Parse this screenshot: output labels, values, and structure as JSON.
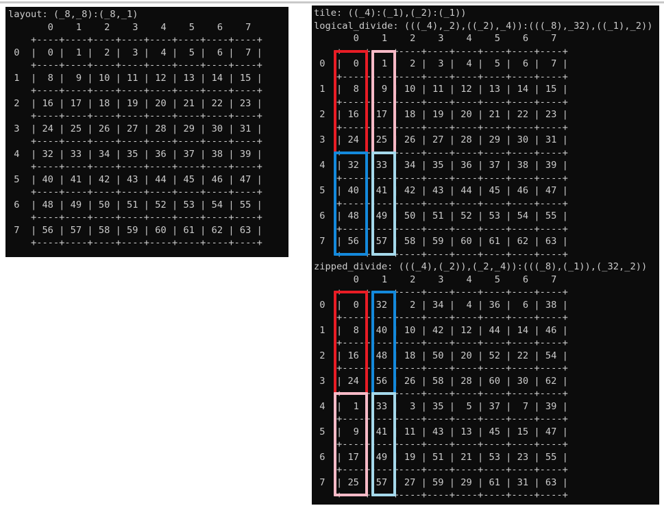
{
  "page": {
    "background": "#ffffff",
    "top_divider_color": "#c9c9c9"
  },
  "terminal": {
    "background": "#0c0c0c",
    "text_color": "#cccccc"
  },
  "highlight_colors": {
    "red": "#e81c25",
    "pink": "#f9bac7",
    "blue": "#1489db",
    "skyblue": "#a5d9eb"
  },
  "panels": {
    "layout": {
      "titles": [
        "layout: (_8,_8):(_8,_1)"
      ],
      "grid": {
        "col_headers": [
          "0",
          "1",
          "2",
          "3",
          "4",
          "5",
          "6",
          "7"
        ],
        "row_headers": [
          "0",
          "1",
          "2",
          "3",
          "4",
          "5",
          "6",
          "7"
        ],
        "rows": [
          [
            0,
            1,
            2,
            3,
            4,
            5,
            6,
            7
          ],
          [
            8,
            9,
            10,
            11,
            12,
            13,
            14,
            15
          ],
          [
            16,
            17,
            18,
            19,
            20,
            21,
            22,
            23
          ],
          [
            24,
            25,
            26,
            27,
            28,
            29,
            30,
            31
          ],
          [
            32,
            33,
            34,
            35,
            36,
            37,
            38,
            39
          ],
          [
            40,
            41,
            42,
            43,
            44,
            45,
            46,
            47
          ],
          [
            48,
            49,
            50,
            51,
            52,
            53,
            54,
            55
          ],
          [
            56,
            57,
            58,
            59,
            60,
            61,
            62,
            63
          ]
        ]
      },
      "boxes": []
    },
    "tile": {
      "titles": [
        "tile: ((_4):(_1),(_2):(_1))",
        "logical_divide: (((_4),_2),((_2),_4)):(((_8),_32),((_1),_2))"
      ],
      "grid": {
        "col_headers": [
          "0",
          "1",
          "2",
          "3",
          "4",
          "5",
          "6",
          "7"
        ],
        "row_headers": [
          "0",
          "1",
          "2",
          "3",
          "4",
          "5",
          "6",
          "7"
        ],
        "rows": [
          [
            0,
            1,
            2,
            3,
            4,
            5,
            6,
            7
          ],
          [
            8,
            9,
            10,
            11,
            12,
            13,
            14,
            15
          ],
          [
            16,
            17,
            18,
            19,
            20,
            21,
            22,
            23
          ],
          [
            24,
            25,
            26,
            27,
            28,
            29,
            30,
            31
          ],
          [
            32,
            33,
            34,
            35,
            36,
            37,
            38,
            39
          ],
          [
            40,
            41,
            42,
            43,
            44,
            45,
            46,
            47
          ],
          [
            48,
            49,
            50,
            51,
            52,
            53,
            54,
            55
          ],
          [
            56,
            57,
            58,
            59,
            60,
            61,
            62,
            63
          ]
        ]
      },
      "boxes": [
        {
          "name": "red-highlight-box",
          "color": "red",
          "col": 0,
          "row_start": 0,
          "row_end": 3
        },
        {
          "name": "pink-highlight-box",
          "color": "pink",
          "col": 1,
          "row_start": 0,
          "row_end": 3
        },
        {
          "name": "blue-highlight-box",
          "color": "blue",
          "col": 0,
          "row_start": 4,
          "row_end": 7
        },
        {
          "name": "skyblue-highlight-box",
          "color": "skyblue",
          "col": 1,
          "row_start": 4,
          "row_end": 7
        }
      ]
    },
    "zipped": {
      "titles": [
        "zipped_divide: (((_4),(_2)),(_2,_4)):(((_8),(_1)),(_32,_2))"
      ],
      "grid": {
        "col_headers": [
          "0",
          "1",
          "2",
          "3",
          "4",
          "5",
          "6",
          "7"
        ],
        "row_headers": [
          "0",
          "1",
          "2",
          "3",
          "4",
          "5",
          "6",
          "7"
        ],
        "rows": [
          [
            0,
            32,
            2,
            34,
            4,
            36,
            6,
            38
          ],
          [
            8,
            40,
            10,
            42,
            12,
            44,
            14,
            46
          ],
          [
            16,
            48,
            18,
            50,
            20,
            52,
            22,
            54
          ],
          [
            24,
            56,
            26,
            58,
            28,
            60,
            30,
            62
          ],
          [
            1,
            33,
            3,
            35,
            5,
            37,
            7,
            39
          ],
          [
            9,
            41,
            11,
            43,
            13,
            45,
            15,
            47
          ],
          [
            17,
            49,
            19,
            51,
            21,
            53,
            23,
            55
          ],
          [
            25,
            57,
            27,
            59,
            29,
            61,
            31,
            63
          ]
        ]
      },
      "boxes": [
        {
          "name": "red-highlight-box",
          "color": "red",
          "col": 0,
          "row_start": 0,
          "row_end": 3
        },
        {
          "name": "blue-highlight-box",
          "color": "blue",
          "col": 1,
          "row_start": 0,
          "row_end": 3
        },
        {
          "name": "pink-highlight-box",
          "color": "pink",
          "col": 0,
          "row_start": 4,
          "row_end": 7
        },
        {
          "name": "skyblue-highlight-box",
          "color": "skyblue",
          "col": 1,
          "row_start": 4,
          "row_end": 7
        }
      ]
    }
  }
}
